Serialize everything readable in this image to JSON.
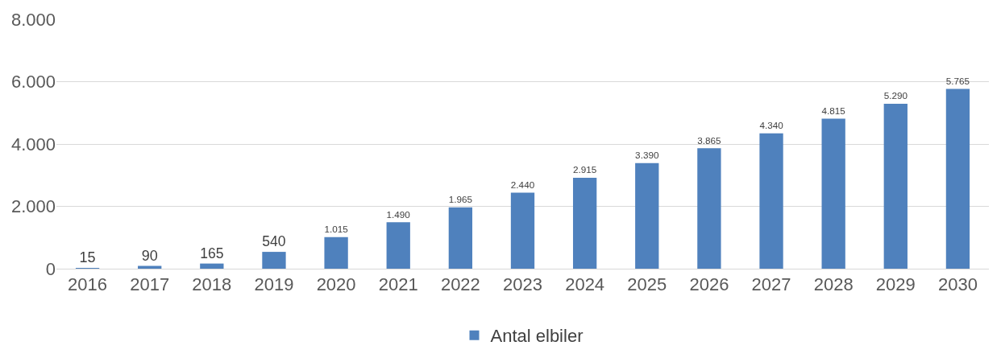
{
  "chart_data": {
    "type": "bar",
    "categories": [
      "2016",
      "2017",
      "2018",
      "2019",
      "2020",
      "2021",
      "2022",
      "2023",
      "2024",
      "2025",
      "2026",
      "2027",
      "2028",
      "2029",
      "2030"
    ],
    "series": [
      {
        "name": "Antal elbiler",
        "color": "#4f81bd",
        "values": [
          15,
          90,
          165,
          540,
          1015,
          1490,
          1965,
          2440,
          2915,
          3390,
          3865,
          4340,
          4815,
          5290,
          5765
        ],
        "value_labels": [
          "15",
          "90",
          "165",
          "540",
          "1.015",
          "1.490",
          "1.965",
          "2.440",
          "2.915",
          "3.390",
          "3.865",
          "4.340",
          "4.815",
          "5.290",
          "5.765"
        ]
      }
    ],
    "ylim": [
      0,
      8000
    ],
    "yticks": [
      {
        "value": 0,
        "label": "0"
      },
      {
        "value": 2000,
        "label": "2.000"
      },
      {
        "value": 4000,
        "label": "4.000"
      },
      {
        "value": 6000,
        "label": "6.000"
      },
      {
        "value": 8000,
        "label": "8.000"
      }
    ],
    "grid": "y",
    "legend": "bottom"
  }
}
